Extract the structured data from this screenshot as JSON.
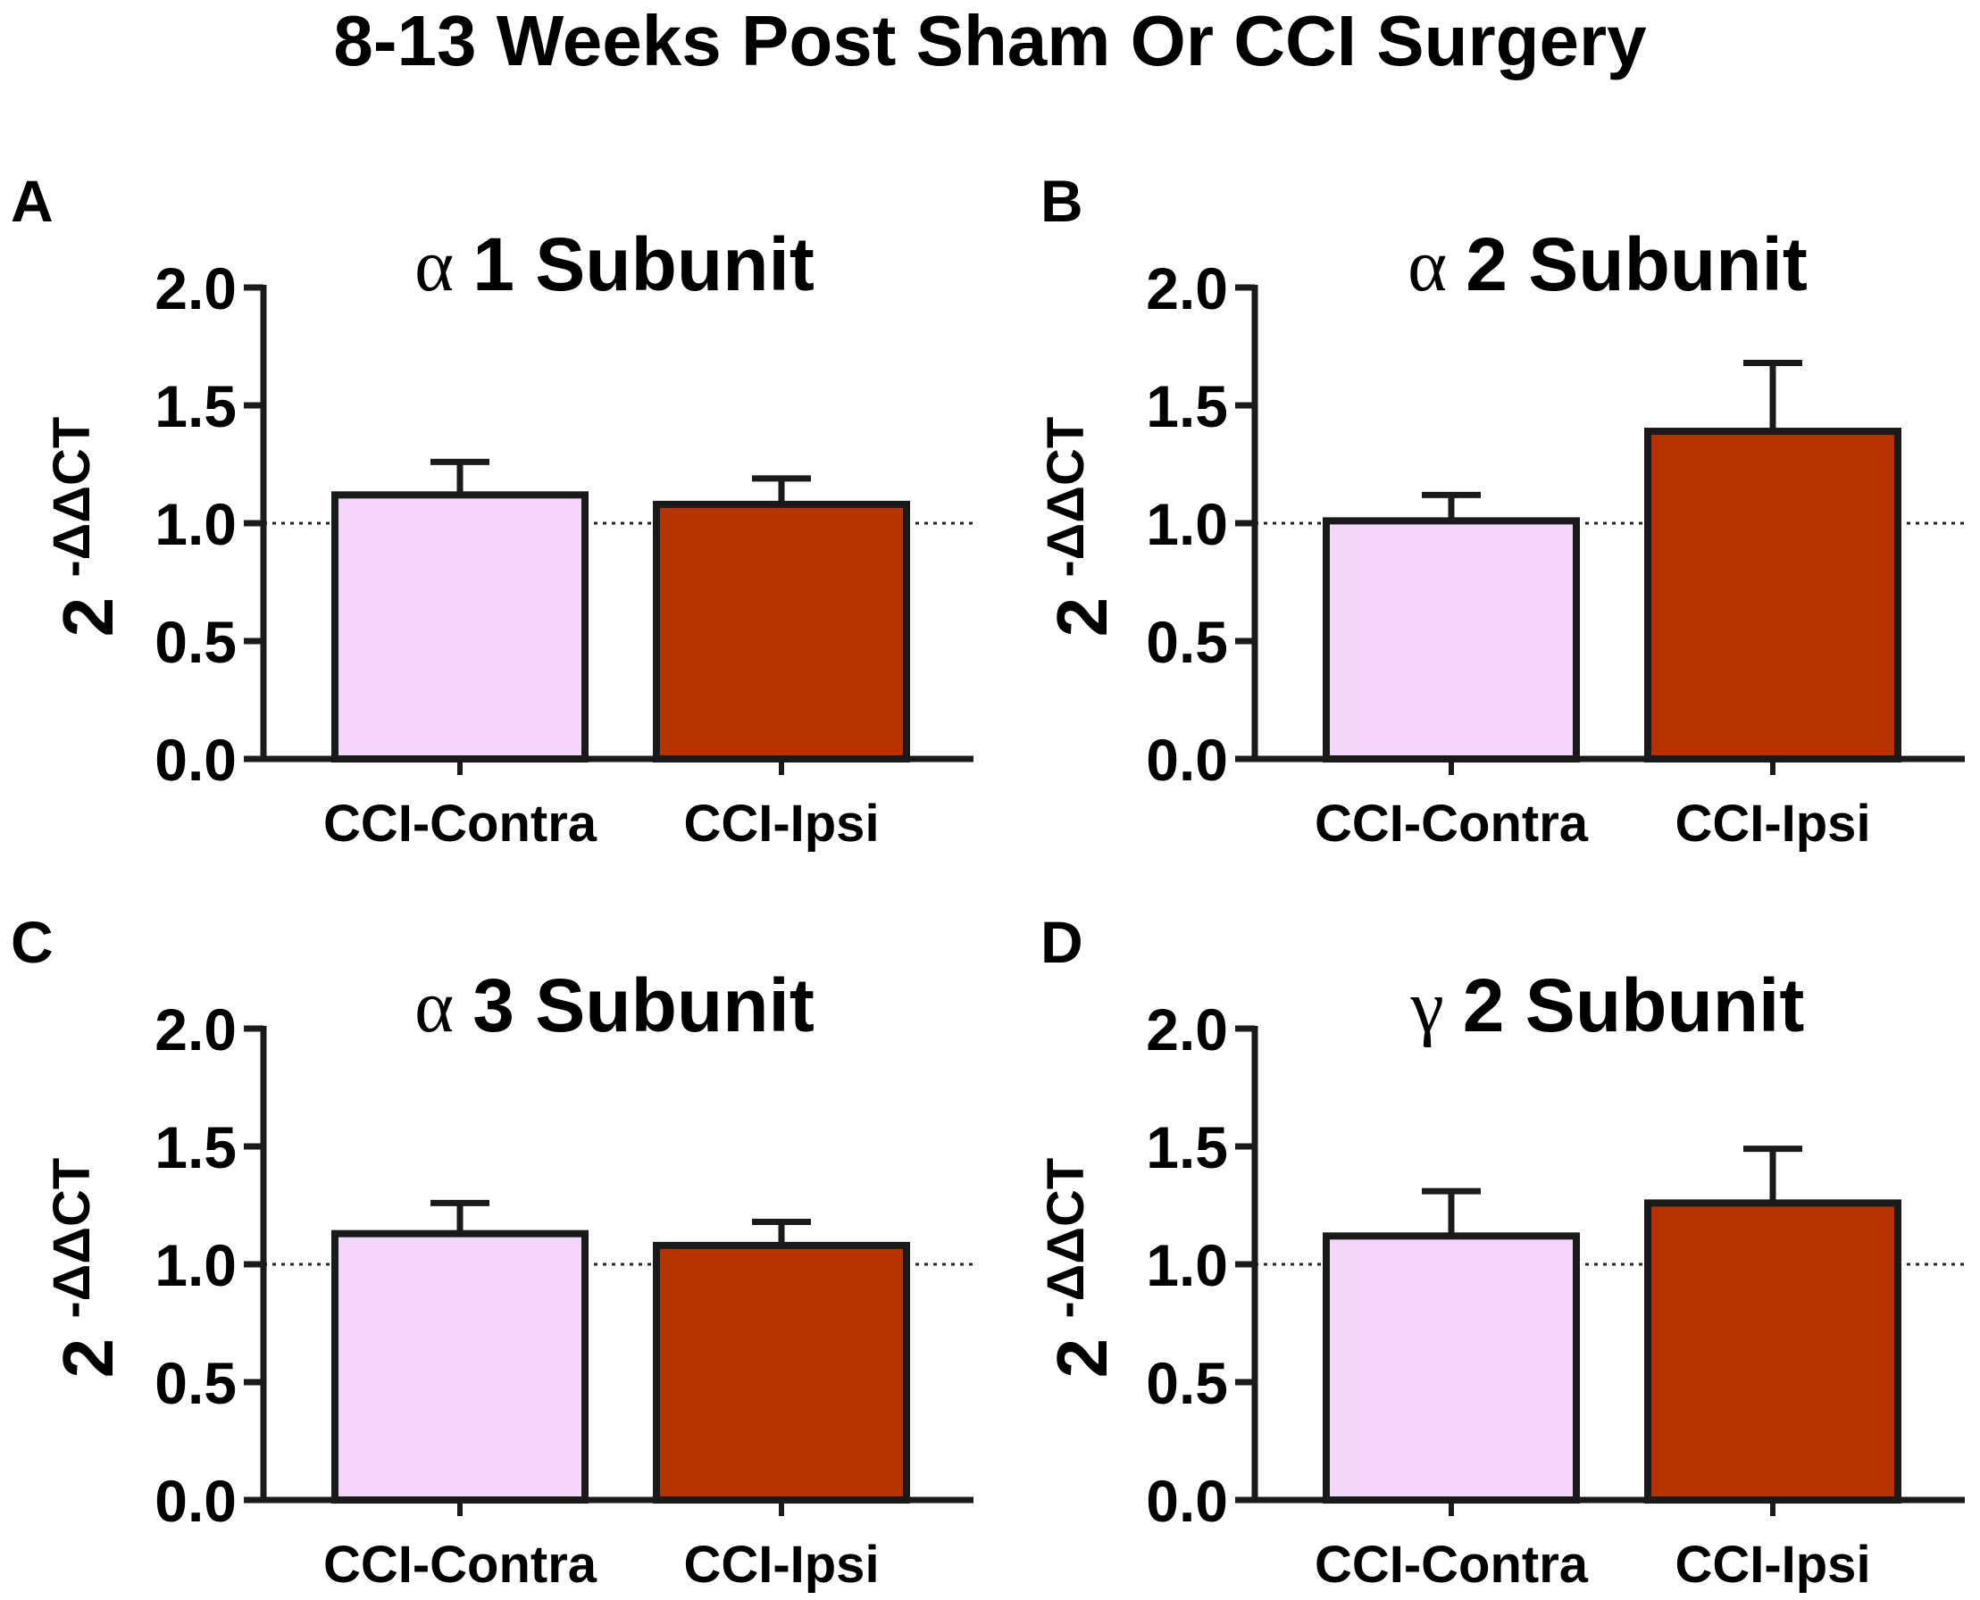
{
  "title": "8-13 Weeks Post Sham Or CCI Surgery",
  "colors": {
    "contra": "#f5d6fb",
    "ipsi": "#b83200",
    "stroke": "#1a1a1a"
  },
  "chart_data": [
    {
      "type": "bar",
      "panel": "A",
      "title": {
        "greek": "α",
        "text": "1 Subunit"
      },
      "ylabel": {
        "base": "2",
        "sup": "-ΔΔCT"
      },
      "xlabel": "",
      "ylim": [
        0,
        2
      ],
      "yticks": [
        "0.0",
        "0.5",
        "1.0",
        "1.5",
        "2.0"
      ],
      "reference_line": 1.0,
      "categories": [
        "CCI-Contra",
        "CCI-Ipsi"
      ],
      "values": [
        1.12,
        1.08
      ],
      "errors": [
        0.14,
        0.11
      ]
    },
    {
      "type": "bar",
      "panel": "B",
      "title": {
        "greek": "α",
        "text": "2 Subunit"
      },
      "ylabel": {
        "base": "2",
        "sup": "-ΔΔCT"
      },
      "xlabel": "",
      "ylim": [
        0,
        2
      ],
      "yticks": [
        "0.0",
        "0.5",
        "1.0",
        "1.5",
        "2.0"
      ],
      "reference_line": 1.0,
      "categories": [
        "CCI-Contra",
        "CCI-Ipsi"
      ],
      "values": [
        1.01,
        1.39
      ],
      "errors": [
        0.11,
        0.29
      ]
    },
    {
      "type": "bar",
      "panel": "C",
      "title": {
        "greek": "α",
        "text": "3 Subunit"
      },
      "ylabel": {
        "base": "2",
        "sup": "-ΔΔCT"
      },
      "xlabel": "",
      "ylim": [
        0,
        2
      ],
      "yticks": [
        "0.0",
        "0.5",
        "1.0",
        "1.5",
        "2.0"
      ],
      "reference_line": 1.0,
      "categories": [
        "CCI-Contra",
        "CCI-Ipsi"
      ],
      "values": [
        1.13,
        1.08
      ],
      "errors": [
        0.13,
        0.1
      ]
    },
    {
      "type": "bar",
      "panel": "D",
      "title": {
        "greek": "γ",
        "text": "2 Subunit"
      },
      "ylabel": {
        "base": "2",
        "sup": "-ΔΔCT"
      },
      "xlabel": "",
      "ylim": [
        0,
        2
      ],
      "yticks": [
        "0.0",
        "0.5",
        "1.0",
        "1.5",
        "2.0"
      ],
      "reference_line": 1.0,
      "categories": [
        "CCI-Contra",
        "CCI-Ipsi"
      ],
      "values": [
        1.12,
        1.26
      ],
      "errors": [
        0.19,
        0.23
      ]
    }
  ]
}
